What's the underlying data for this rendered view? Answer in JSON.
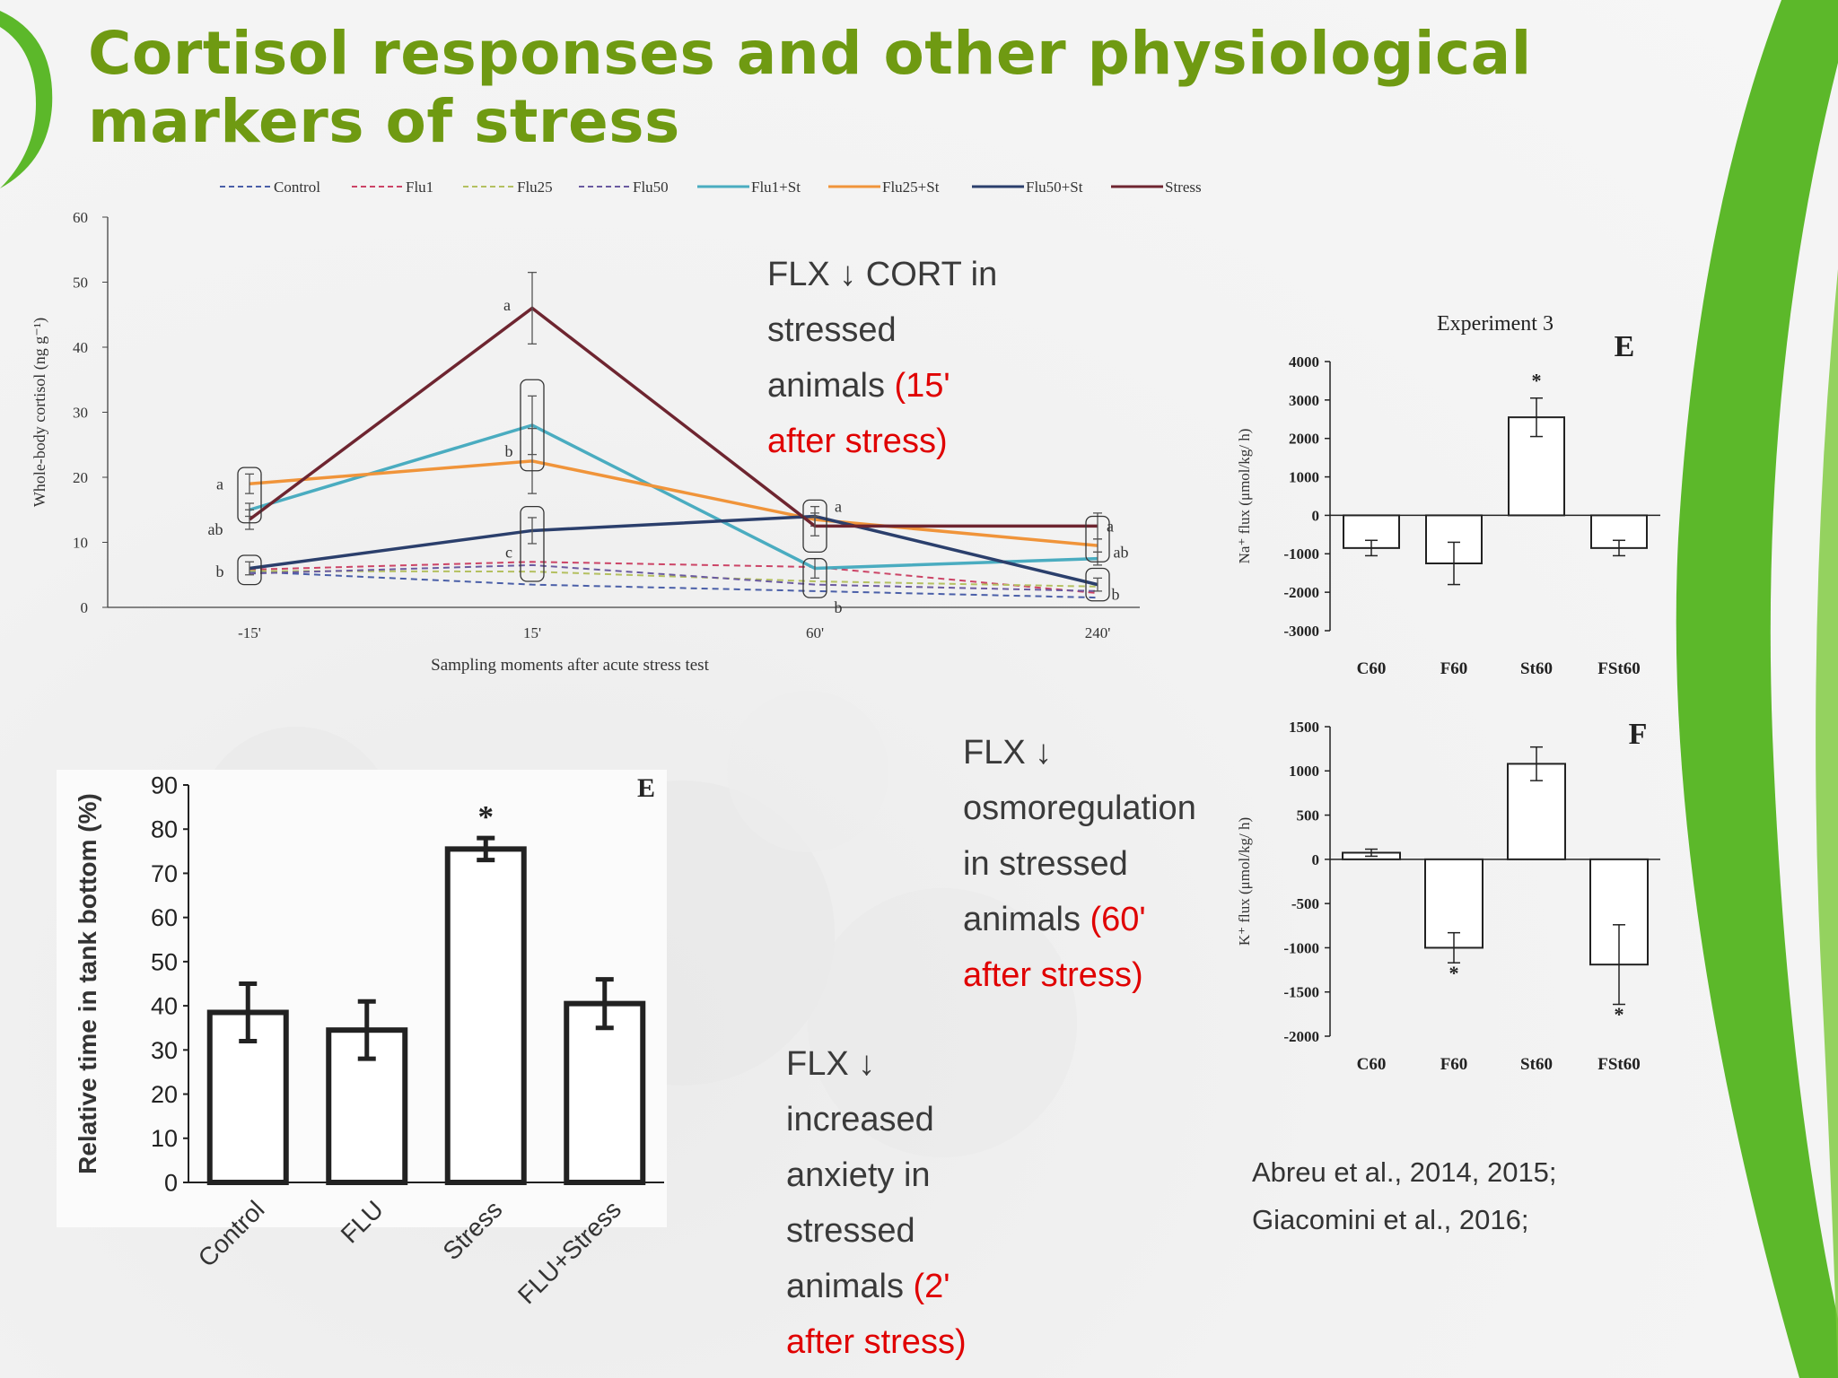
{
  "slide": {
    "title_lines": [
      "Cortisol responses and other physiological",
      "markers of stress"
    ],
    "colors": {
      "title": "#6f9a12",
      "highlight": "#e00000",
      "text": "#3a3a3a",
      "accent_green": "#5cb82a"
    }
  },
  "notes": {
    "cort": {
      "lines": [
        "FLX ↓ CORT in",
        "stressed",
        "animals "
      ],
      "red": [
        "(15'",
        "after stress)"
      ]
    },
    "osmo": {
      "lines": [
        "FLX ↓",
        "osmoregulation",
        "in stressed",
        "animals "
      ],
      "red": [
        "(60'",
        "after stress)"
      ]
    },
    "anx": {
      "lines": [
        "FLX ↓",
        "increased",
        "anxiety in",
        "stressed",
        "animals "
      ],
      "red": [
        "(2'",
        "after stress)"
      ]
    }
  },
  "references": [
    "Abreu et al., 2014, 2015;",
    "Giacomini et al., 2016;"
  ],
  "chart_data": [
    {
      "id": "cortisol",
      "type": "line",
      "x": [
        "-15'",
        "15'",
        "60'",
        "240'"
      ],
      "xlabel": "Sampling  moments after acute stress test",
      "ylabel": "Whole-body cortisol (ng g⁻¹)",
      "ylim": [
        0,
        60
      ],
      "yticks": [
        0,
        10,
        20,
        30,
        40,
        50,
        60
      ],
      "legend_position": "top",
      "series": [
        {
          "name": "Control",
          "dashed": true,
          "color": "#4a5fa8",
          "values": [
            5.5,
            3.5,
            2.5,
            1.5
          ]
        },
        {
          "name": "Flu1",
          "dashed": true,
          "color": "#cc4466",
          "values": [
            5.8,
            7.0,
            6.2,
            2.2
          ]
        },
        {
          "name": "Flu25",
          "dashed": true,
          "color": "#b4c060",
          "values": [
            5.6,
            5.5,
            4.0,
            3.2
          ]
        },
        {
          "name": "Flu50",
          "dashed": true,
          "color": "#6a5aa0",
          "values": [
            5.2,
            6.5,
            3.5,
            2.5
          ]
        },
        {
          "name": "Flu1+St",
          "dashed": false,
          "color": "#4aacc0",
          "values": [
            15.0,
            28.0,
            6.0,
            7.5
          ],
          "errors": [
            1.0,
            4.5,
            1.5,
            1.0
          ]
        },
        {
          "name": "Flu25+St",
          "dashed": false,
          "color": "#f0943a",
          "values": [
            19.0,
            22.5,
            13.5,
            9.5
          ],
          "errors": [
            1.5,
            5.0,
            1.0,
            1.0
          ]
        },
        {
          "name": "Flu50+St",
          "dashed": false,
          "color": "#2b3f6c",
          "values": [
            6.0,
            11.8,
            14.0,
            3.5
          ],
          "errors": [
            1.0,
            2.0,
            1.5,
            1.0
          ]
        },
        {
          "name": "Stress",
          "dashed": false,
          "color": "#6e2530",
          "values": [
            13.5,
            46.0,
            12.5,
            12.5
          ],
          "errors": [
            1.5,
            5.5,
            1.5,
            2.0
          ]
        }
      ],
      "annotations": [
        {
          "x": "-15'",
          "labels": [
            "a",
            "ab",
            "b"
          ]
        },
        {
          "x": "15'",
          "labels": [
            "a",
            "b",
            "c"
          ]
        },
        {
          "x": "60'",
          "labels": [
            "a",
            "b"
          ]
        },
        {
          "x": "240'",
          "labels": [
            "a",
            "ab",
            "b"
          ]
        }
      ]
    },
    {
      "id": "anxiety",
      "type": "bar",
      "panel_letter": "E",
      "categories": [
        "Control",
        "FLU",
        "Stress",
        "FLU+Stress"
      ],
      "values": [
        38.5,
        34.5,
        75.5,
        40.5
      ],
      "errors": [
        6.5,
        6.5,
        2.5,
        5.5
      ],
      "ylabel": "Relative time in tank bottom (%)",
      "ylim": [
        0,
        90
      ],
      "yticks": [
        0,
        10,
        20,
        30,
        40,
        50,
        60,
        70,
        80,
        90
      ],
      "significance": [
        {
          "category": "Stress",
          "mark": "*"
        }
      ]
    },
    {
      "id": "na_flux",
      "type": "bar",
      "title": "Experiment  3",
      "panel_letter": "E",
      "categories": [
        "C60",
        "F60",
        "St60",
        "FSt60"
      ],
      "values": [
        -850,
        -1250,
        2550,
        -850
      ],
      "errors": [
        200,
        550,
        500,
        200
      ],
      "ylabel": "Na⁺ flux (μmol/kg/ h)",
      "ylim": [
        -3000,
        4000
      ],
      "yticks": [
        -3000,
        -2000,
        -1000,
        0,
        1000,
        2000,
        3000,
        4000
      ],
      "significance": [
        {
          "category": "St60",
          "mark": "*"
        }
      ]
    },
    {
      "id": "k_flux",
      "type": "bar",
      "panel_letter": "F",
      "categories": [
        "C60",
        "F60",
        "St60",
        "FSt60"
      ],
      "values": [
        75,
        -1000,
        1080,
        -1190
      ],
      "errors": [
        40,
        170,
        190,
        450
      ],
      "ylabel": "K⁺ flux (μmol/kg/ h)",
      "ylim": [
        -2000,
        1500
      ],
      "yticks": [
        -2000,
        -1500,
        -1000,
        -500,
        0,
        500,
        1000,
        1500
      ],
      "significance": [
        {
          "category": "F60",
          "mark": "*"
        },
        {
          "category": "FSt60",
          "mark": "*"
        }
      ]
    }
  ]
}
